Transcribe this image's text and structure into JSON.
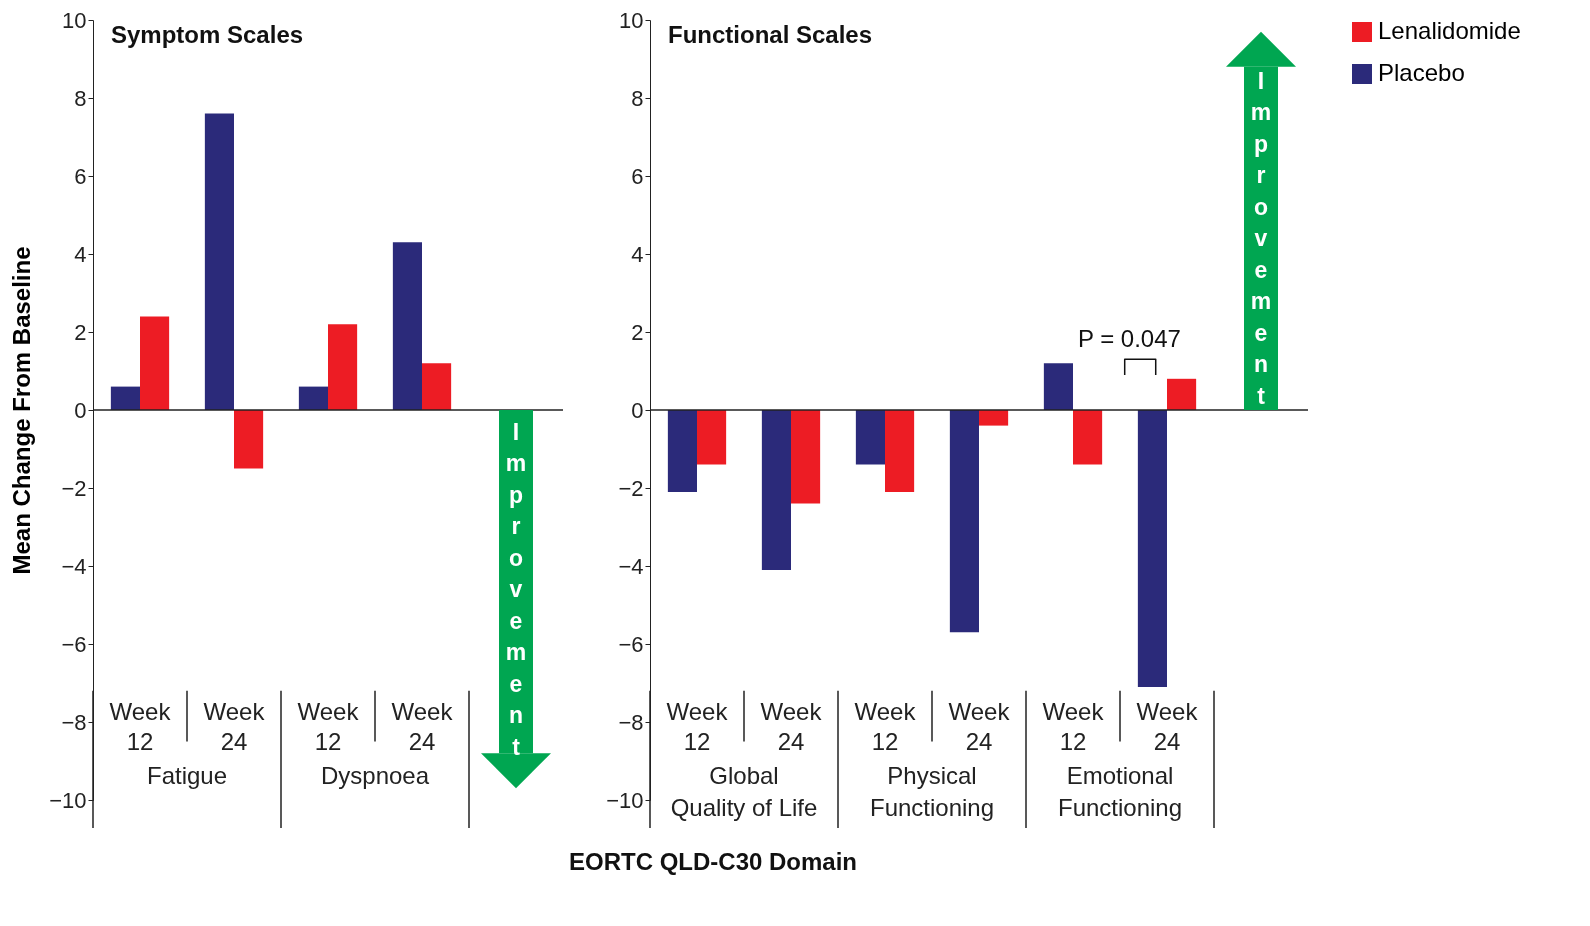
{
  "chart_data": [
    {
      "type": "bar",
      "title": "Symptom Scales",
      "ylabel": "Mean Change From Baseline",
      "xlabel": "EORTC QLD-C30 Domain",
      "categories": [
        "Week 12",
        "Week 24",
        "Week 12",
        "Week 24"
      ],
      "series": [
        {
          "name": "Lenalidomide",
          "color": "#ed1c24",
          "values": [
            2.4,
            -1.5,
            2.2,
            1.2
          ]
        },
        {
          "name": "Placebo",
          "color": "#2b2a7a",
          "values": [
            0.6,
            7.6,
            0.6,
            4.3
          ]
        }
      ],
      "ylim": [
        -10,
        10
      ],
      "yticks": [
        {
          "value": -10,
          "label": "−10"
        },
        {
          "value": -8,
          "label": "−8"
        },
        {
          "value": -6,
          "label": "−6"
        },
        {
          "value": -4,
          "label": "−4"
        },
        {
          "value": -2,
          "label": "−2"
        },
        0,
        2,
        4,
        6,
        8,
        10
      ],
      "grid": false,
      "legend": "top right",
      "ref_lines": [
        {
          "axis": "y",
          "value": 0,
          "color": "#222222"
        }
      ],
      "annotations": [
        "Fatigue",
        "Dyspnoea",
        "Improvement"
      ]
    },
    {
      "type": "bar",
      "title": "Functional Scales",
      "categories": [
        "Week 12",
        "Week 24",
        "Week 12",
        "Week 24",
        "Week 12",
        "Week 24"
      ],
      "series": [
        {
          "name": "Lenalidomide",
          "color": "#ed1c24",
          "values": [
            -1.4,
            -2.4,
            -2.1,
            -0.4,
            -1.4,
            0.8
          ]
        },
        {
          "name": "Placebo",
          "color": "#2b2a7a",
          "values": [
            -2.1,
            -4.1,
            -1.4,
            -5.7,
            1.2,
            -7.1
          ]
        }
      ],
      "ylim": [
        -10,
        10
      ],
      "yticks": [
        {
          "value": -10,
          "label": "−10"
        },
        {
          "value": -8,
          "label": "−8"
        },
        {
          "value": -6,
          "label": "−6"
        },
        {
          "value": -4,
          "label": "−4"
        },
        {
          "value": -2,
          "label": "−2"
        },
        0,
        2,
        4,
        6,
        8,
        10
      ],
      "grid": false,
      "legend": "top right",
      "ref_lines": [
        {
          "axis": "y",
          "value": 0,
          "color": "#222222"
        }
      ],
      "annotations": [
        "Global\nQuality of Life",
        "Physical\nFunctioning",
        "Emotional\nFunctioning",
        "Improvement",
        "P = 0.047"
      ]
    }
  ]
}
